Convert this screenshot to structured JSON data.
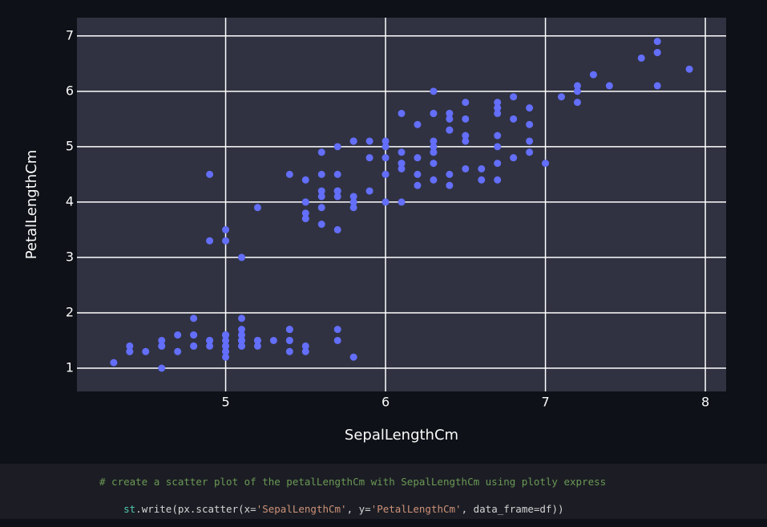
{
  "chart_data": {
    "type": "scatter",
    "x_label": "SepalLengthCm",
    "y_label": "PetalLengthCm",
    "color": "#636efa",
    "xlim": [
      4.07,
      8.13
    ],
    "ylim": [
      0.58,
      7.33
    ],
    "xticks": [
      5,
      6,
      7,
      8
    ],
    "yticks": [
      1,
      2,
      3,
      4,
      5,
      6,
      7
    ],
    "grid": true,
    "x": [
      5.1,
      4.9,
      4.7,
      4.6,
      5.0,
      5.4,
      4.6,
      5.0,
      4.4,
      4.9,
      5.4,
      4.8,
      4.8,
      4.3,
      5.8,
      5.7,
      5.4,
      5.1,
      5.7,
      5.1,
      5.4,
      5.1,
      4.6,
      5.1,
      4.8,
      5.0,
      5.0,
      5.2,
      5.2,
      4.7,
      4.8,
      5.4,
      5.2,
      5.5,
      4.9,
      5.0,
      5.5,
      4.9,
      4.4,
      5.1,
      5.0,
      4.5,
      4.4,
      5.0,
      5.1,
      4.8,
      5.1,
      4.6,
      5.3,
      5.0,
      7.0,
      6.4,
      6.9,
      5.5,
      6.5,
      5.7,
      6.3,
      4.9,
      6.6,
      5.2,
      5.0,
      5.9,
      6.0,
      6.1,
      5.6,
      6.7,
      5.6,
      5.8,
      6.2,
      5.6,
      5.9,
      6.1,
      6.3,
      6.1,
      6.4,
      6.6,
      6.8,
      6.7,
      6.0,
      5.7,
      5.5,
      5.5,
      5.8,
      6.0,
      5.4,
      6.0,
      6.7,
      6.3,
      5.6,
      5.5,
      5.5,
      6.1,
      5.8,
      5.0,
      5.6,
      5.7,
      5.7,
      6.2,
      5.1,
      5.7,
      6.3,
      5.8,
      7.1,
      6.3,
      6.5,
      7.6,
      4.9,
      7.3,
      6.7,
      7.2,
      6.5,
      6.4,
      6.8,
      5.7,
      5.8,
      6.4,
      6.5,
      7.7,
      7.7,
      6.0,
      6.9,
      5.6,
      7.7,
      6.3,
      6.7,
      7.2,
      6.2,
      6.1,
      6.4,
      7.2,
      7.4,
      7.9,
      6.4,
      6.3,
      6.1,
      7.7,
      6.3,
      6.4,
      6.0,
      6.9,
      6.7,
      6.9,
      5.8,
      6.8,
      6.7,
      6.7,
      6.3,
      6.5,
      6.2,
      5.9
    ],
    "y": [
      1.4,
      1.4,
      1.3,
      1.5,
      1.4,
      1.7,
      1.4,
      1.5,
      1.4,
      1.5,
      1.5,
      1.6,
      1.4,
      1.1,
      1.2,
      1.5,
      1.3,
      1.4,
      1.7,
      1.5,
      1.7,
      1.5,
      1.0,
      1.7,
      1.9,
      1.6,
      1.6,
      1.5,
      1.4,
      1.6,
      1.6,
      1.5,
      1.5,
      1.4,
      1.5,
      1.2,
      1.3,
      1.5,
      1.3,
      1.5,
      1.3,
      1.3,
      1.3,
      1.6,
      1.9,
      1.4,
      1.6,
      1.4,
      1.5,
      1.4,
      4.7,
      4.5,
      4.9,
      4.0,
      4.6,
      4.5,
      4.7,
      3.3,
      4.6,
      3.9,
      3.5,
      4.2,
      4.0,
      4.7,
      3.6,
      4.4,
      4.5,
      4.1,
      4.5,
      3.9,
      4.8,
      4.0,
      4.9,
      4.7,
      4.3,
      4.4,
      4.8,
      5.0,
      4.5,
      3.5,
      3.8,
      3.7,
      3.9,
      5.1,
      4.5,
      4.5,
      4.7,
      4.4,
      4.1,
      4.0,
      4.4,
      4.6,
      4.0,
      3.3,
      4.2,
      4.2,
      4.2,
      4.3,
      3.0,
      4.1,
      6.0,
      5.1,
      5.9,
      5.6,
      5.8,
      6.6,
      4.5,
      6.3,
      5.8,
      6.1,
      5.1,
      5.3,
      5.5,
      5.0,
      5.1,
      5.3,
      5.5,
      6.7,
      6.9,
      5.0,
      5.7,
      4.9,
      6.7,
      4.9,
      5.7,
      6.0,
      4.8,
      4.9,
      5.6,
      5.8,
      6.1,
      6.4,
      5.6,
      5.1,
      5.6,
      6.1,
      5.6,
      5.5,
      4.8,
      5.4,
      5.6,
      5.1,
      5.1,
      5.9,
      5.7,
      5.2,
      5.0,
      5.2,
      5.4,
      5.1
    ]
  },
  "code": {
    "comment": "# create a scatter plot of the petalLengthCm with SepalLengthCm using plotly express",
    "tokens": [
      "st",
      ".write(px.scatter(x=",
      "'SepalLengthCm'",
      ", y=",
      "'PetalLengthCm'",
      ", data_frame=df))"
    ]
  }
}
